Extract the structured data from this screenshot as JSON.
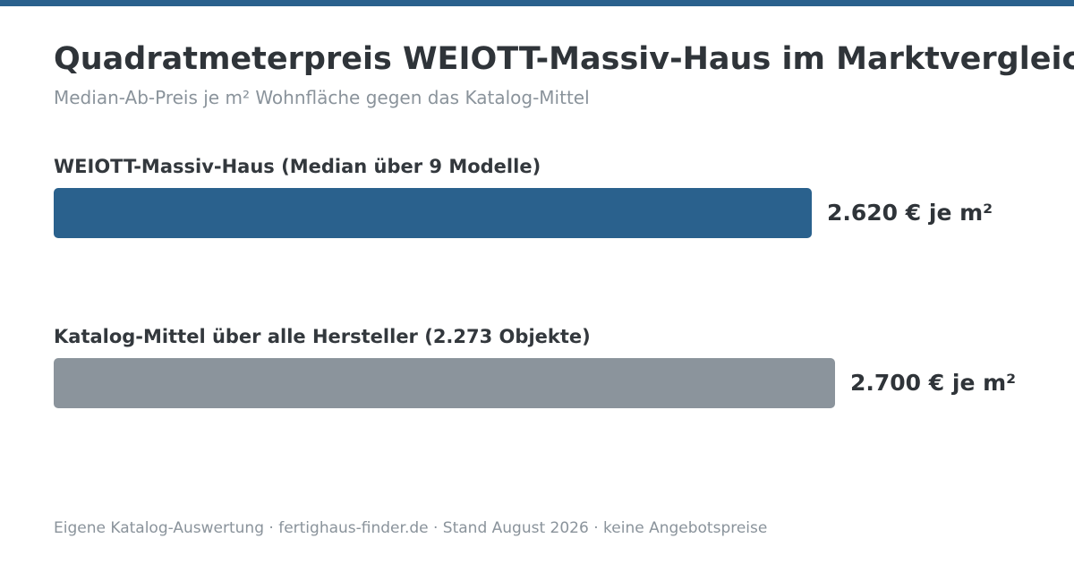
{
  "header": {
    "title": "Quadratmeterpreis WEIOTT-Massiv-Haus im Marktvergleich",
    "subtitle": "Median-Ab-Preis je m² Wohnfläche gegen das Katalog-Mittel"
  },
  "colors": {
    "accent": "#2a618d",
    "neutral": "#8b949c"
  },
  "chart_data": {
    "type": "bar",
    "orientation": "horizontal",
    "title": "Quadratmeterpreis WEIOTT-Massiv-Haus im Marktvergleich",
    "subtitle": "Median-Ab-Preis je m² Wohnfläche gegen das Katalog-Mittel",
    "grid": false,
    "legend": "none",
    "categories": [
      "WEIOTT-Massiv-Haus (Median über 9 Modelle)",
      "Katalog-Mittel über alle Hersteller (2.273 Objekte)"
    ],
    "values": [
      2620,
      2700
    ],
    "value_labels": [
      "2.620 € je m²",
      "2.700 € je m²"
    ],
    "bar_colors": [
      "#2a618d",
      "#8b949c"
    ],
    "xlim": [
      0,
      2750
    ]
  },
  "footer": {
    "note": "Eigene Katalog-Auswertung · fertighaus-finder.de · Stand August 2026 · keine Angebotspreise"
  }
}
